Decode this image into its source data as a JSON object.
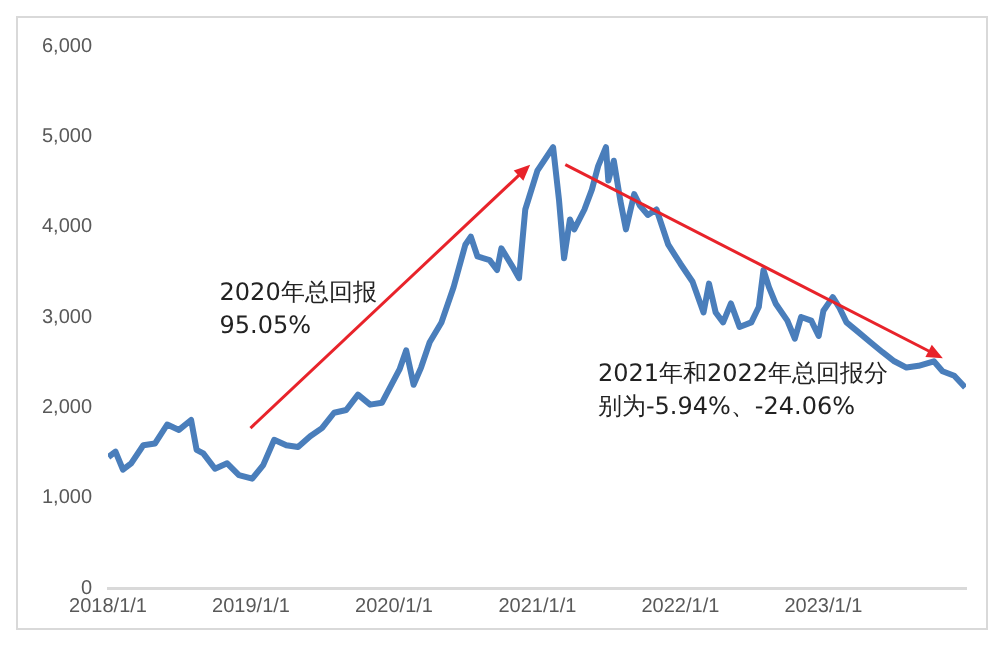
{
  "chart_data": {
    "type": "line",
    "x": [
      "2018-01-02",
      "2018-01-20",
      "2018-02-08",
      "2018-03-01",
      "2018-04-01",
      "2018-05-01",
      "2018-06-01",
      "2018-07-01",
      "2018-08-01",
      "2018-08-15",
      "2018-09-01",
      "2018-10-01",
      "2018-11-01",
      "2018-12-01",
      "2019-01-04",
      "2019-02-01",
      "2019-03-01",
      "2019-04-01",
      "2019-05-01",
      "2019-06-01",
      "2019-07-01",
      "2019-08-01",
      "2019-09-01",
      "2019-10-01",
      "2019-11-01",
      "2019-12-01",
      "2020-01-15",
      "2020-02-01",
      "2020-02-20",
      "2020-03-10",
      "2020-04-01",
      "2020-05-01",
      "2020-06-01",
      "2020-07-01",
      "2020-07-15",
      "2020-08-01",
      "2020-09-01",
      "2020-09-20",
      "2020-10-01",
      "2020-11-01",
      "2020-11-15",
      "2020-12-01",
      "2021-01-01",
      "2021-02-10",
      "2021-02-25",
      "2021-03-10",
      "2021-03-25",
      "2021-04-05",
      "2021-05-01",
      "2021-05-20",
      "2021-06-05",
      "2021-06-25",
      "2021-07-01",
      "2021-07-15",
      "2021-08-01",
      "2021-08-15",
      "2021-09-05",
      "2021-09-20",
      "2021-10-10",
      "2021-11-01",
      "2021-12-01",
      "2022-01-01",
      "2022-02-01",
      "2022-03-01",
      "2022-03-15",
      "2022-04-01",
      "2022-04-20",
      "2022-05-10",
      "2022-06-01",
      "2022-07-01",
      "2022-07-20",
      "2022-08-01",
      "2022-08-15",
      "2022-09-01",
      "2022-10-01",
      "2022-10-20",
      "2022-11-05",
      "2022-12-01",
      "2022-12-20",
      "2023-01-01",
      "2023-01-25",
      "2023-02-10",
      "2023-03-01",
      "2023-04-01",
      "2023-05-01",
      "2023-06-01",
      "2023-07-01",
      "2023-08-01",
      "2023-09-01",
      "2023-10-10",
      "2023-11-01",
      "2023-12-01",
      "2023-12-29"
    ],
    "series": [
      {
        "color": "#4a7ebb",
        "values": [
          1450,
          1510,
          1310,
          1380,
          1580,
          1600,
          1810,
          1750,
          1860,
          1530,
          1490,
          1320,
          1380,
          1250,
          1210,
          1360,
          1640,
          1580,
          1560,
          1680,
          1770,
          1940,
          1970,
          2140,
          2030,
          2050,
          2420,
          2630,
          2250,
          2440,
          2720,
          2940,
          3330,
          3800,
          3890,
          3670,
          3630,
          3520,
          3760,
          3540,
          3430,
          4190,
          4620,
          4880,
          4300,
          3650,
          4080,
          3970,
          4190,
          4410,
          4670,
          4880,
          4510,
          4730,
          4280,
          3970,
          4360,
          4230,
          4130,
          4190,
          3800,
          3590,
          3390,
          3050,
          3370,
          3050,
          2940,
          3150,
          2890,
          2940,
          3110,
          3520,
          3330,
          3150,
          2960,
          2760,
          3000,
          2960,
          2790,
          3070,
          3220,
          3110,
          2940,
          2830,
          2720,
          2610,
          2510,
          2440,
          2460,
          2510,
          2400,
          2350,
          2220
        ]
      }
    ],
    "xlim": [
      "2018-01-01",
      "2023-12-31"
    ],
    "xticks": [
      {
        "value": "2018-01-01",
        "label": "2018/1/1"
      },
      {
        "value": "2019-01-01",
        "label": "2019/1/1"
      },
      {
        "value": "2020-01-01",
        "label": "2020/1/1"
      },
      {
        "value": "2021-01-01",
        "label": "2021/1/1"
      },
      {
        "value": "2022-01-01",
        "label": "2022/1/1"
      },
      {
        "value": "2023-01-01",
        "label": "2023/1/1"
      }
    ],
    "ylim": [
      0,
      6000
    ],
    "yticks": [
      {
        "value": 0,
        "label": "0"
      },
      {
        "value": 1000,
        "label": "1,000"
      },
      {
        "value": 2000,
        "label": "2,000"
      },
      {
        "value": 3000,
        "label": "3,000"
      },
      {
        "value": 4000,
        "label": "4,000"
      },
      {
        "value": 5000,
        "label": "5,000"
      },
      {
        "value": 6000,
        "label": "6,000"
      }
    ],
    "annotations": [
      "2020年总回报",
      "95.05%",
      "2021年和2022年总回报分",
      "别为-5.94%、-24.06%"
    ],
    "grid": false,
    "legend": false,
    "marker": "none",
    "line_style": "solid"
  }
}
